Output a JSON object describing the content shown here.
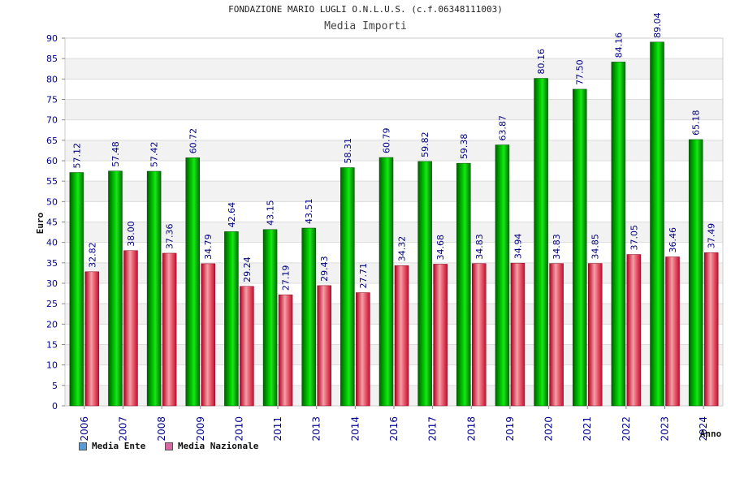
{
  "header": {
    "title": "FONDAZIONE MARIO LUGLI O.N.L.U.S. (c.f.06348111003)",
    "subtitle": "Media Importi"
  },
  "colors": {
    "series1": "#00aa00",
    "series2": "#e0283c",
    "legend1": "#5b9bd5",
    "legend2": "#d56aa0",
    "axis_text": "#00008b",
    "value_text": "#000080"
  },
  "chart_data": {
    "type": "bar",
    "title": "FONDAZIONE MARIO LUGLI O.N.L.U.S. (c.f.06348111003)",
    "subtitle": "Media Importi",
    "xlabel": "Anno",
    "ylabel": "Euro",
    "ylim": [
      0,
      90
    ],
    "yticks": [
      0,
      5,
      10,
      15,
      20,
      25,
      30,
      35,
      40,
      45,
      50,
      55,
      60,
      65,
      70,
      75,
      80,
      85,
      90
    ],
    "grid": true,
    "legend_position": "bottom-left",
    "categories": [
      "2006",
      "2007",
      "2008",
      "2009",
      "2010",
      "2011",
      "2013",
      "2014",
      "2016",
      "2017",
      "2018",
      "2019",
      "2020",
      "2021",
      "2022",
      "2023",
      "2024"
    ],
    "series": [
      {
        "name": "Media Ente",
        "values": [
          57.12,
          57.48,
          57.42,
          60.72,
          42.64,
          43.15,
          43.51,
          58.31,
          60.79,
          59.82,
          59.38,
          63.87,
          80.16,
          77.5,
          84.16,
          89.04,
          65.18
        ],
        "labels": [
          "57.12",
          "57.48",
          "57.42",
          "60.72",
          "42.64",
          "43.15",
          "43.51",
          "58.31",
          "60.79",
          "59.82",
          "59.38",
          "63.87",
          "80.16",
          "77.50",
          "84.16",
          "89.04",
          "65.18"
        ]
      },
      {
        "name": "Media Nazionale",
        "values": [
          32.82,
          38.0,
          37.36,
          34.79,
          29.24,
          27.19,
          29.43,
          27.71,
          34.32,
          34.68,
          34.83,
          34.94,
          34.83,
          34.85,
          37.05,
          36.46,
          37.49
        ],
        "labels": [
          "32.82",
          "38.00",
          "37.36",
          "34.79",
          "29.24",
          "27.19",
          "29.43",
          "27.71",
          "34.32",
          "34.68",
          "34.83",
          "34.94",
          "34.83",
          "34.85",
          "37.05",
          "36.46",
          "37.49"
        ]
      }
    ]
  }
}
